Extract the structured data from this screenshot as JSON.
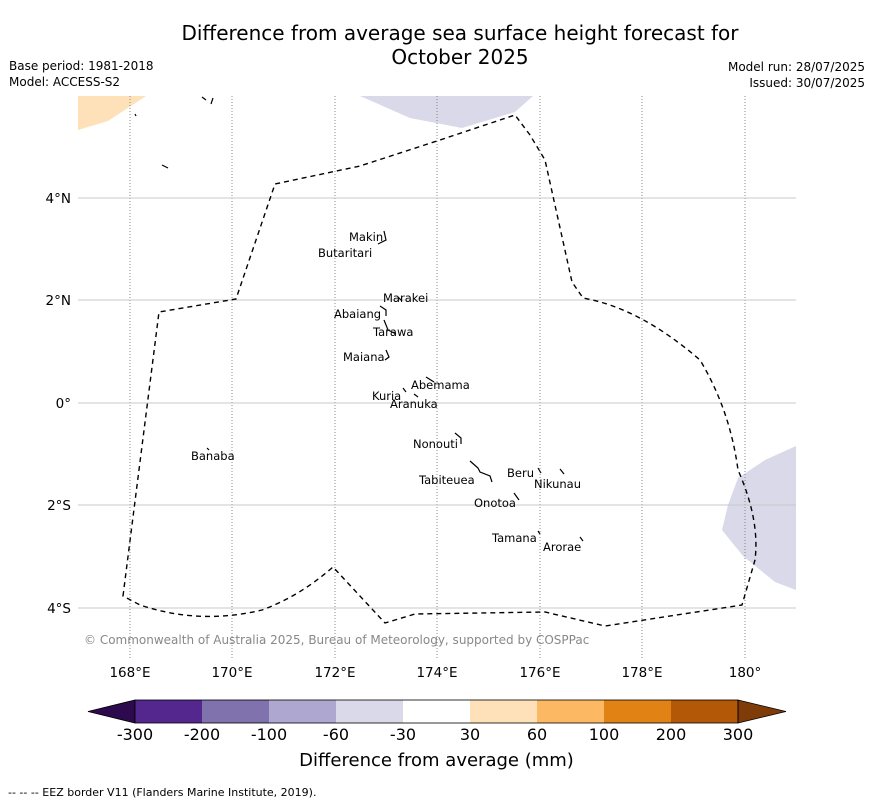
{
  "title_line1": "Difference from average sea surface height forecast for",
  "title_line2": "October 2025",
  "meta_left": [
    "Base period: 1981-2018",
    "Model: ACCESS-S2"
  ],
  "meta_right": [
    "Model run: 28/07/2025",
    "Issued: 30/07/2025"
  ],
  "copyright": "© Commonwealth of Australia 2025, Bureau of Meteorology, supported by COSPPac",
  "axes": {
    "lon_ticks": [
      "168°E",
      "170°E",
      "172°E",
      "174°E",
      "176°E",
      "178°E",
      "180°"
    ],
    "lat_ticks": [
      "4°N",
      "2°N",
      "0°",
      "2°S",
      "4°S"
    ]
  },
  "islands": [
    "Makin",
    "Butaritari",
    "Marakei",
    "Abaiang",
    "Tarawa",
    "Maiana",
    "Abemama",
    "Kuria",
    "Aranuka",
    "Nonouti",
    "Tabiteuea",
    "Beru",
    "Nikunau",
    "Onotoa",
    "Tamana",
    "Arorae",
    "Banaba"
  ],
  "colorbar": {
    "ticks": [
      "-300",
      "-200",
      "-100",
      "-60",
      "-30",
      "30",
      "60",
      "100",
      "200",
      "300"
    ],
    "colors": [
      "#2d0a4e",
      "#54278f",
      "#7f72ad",
      "#aea8d1",
      "#d9d9ea",
      "#ffffff",
      "#fee1b8",
      "#fdb863",
      "#e08214",
      "#b35806",
      "#7f3b08"
    ],
    "title": "Difference from average (mm)"
  },
  "footer": "--  --  -- EEZ border V11 (Flanders Marine Institute, 2019)."
}
